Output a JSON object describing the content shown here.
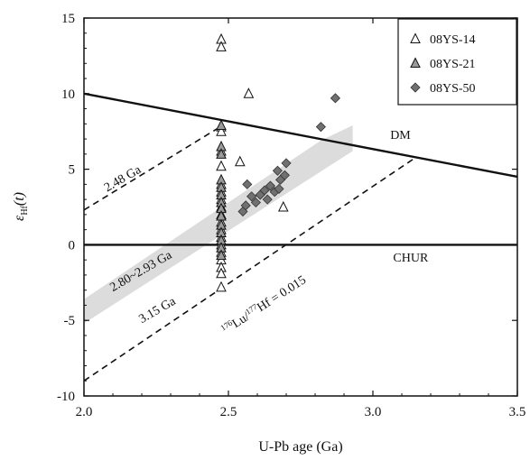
{
  "chart_data": {
    "type": "scatter",
    "xlabel": "U-Pb age (Ga)",
    "ylabel_main": "ε",
    "ylabel_sub": "Hf",
    "ylabel_tail": "(t)",
    "xlim": [
      2.0,
      3.5
    ],
    "ylim": [
      -10,
      15
    ],
    "xticks": [
      2.0,
      2.5,
      3.0,
      3.5
    ],
    "xtick_labels": [
      "2.0",
      "2.5",
      "3.0",
      "3.5"
    ],
    "yticks": [
      -10,
      -5,
      0,
      5,
      10,
      15
    ],
    "ytick_labels": [
      "-10",
      "-5",
      "0",
      "5",
      "10",
      "15"
    ],
    "legend_position": "top-right",
    "series": [
      {
        "name": "08YS-14",
        "marker": "triangle-open",
        "color": "#ffffff",
        "points": [
          [
            2.475,
            13.6
          ],
          [
            2.475,
            13.1
          ],
          [
            2.475,
            7.8
          ],
          [
            2.475,
            7.5
          ],
          [
            2.475,
            6.2
          ],
          [
            2.475,
            5.2
          ],
          [
            2.475,
            4.0
          ],
          [
            2.475,
            3.5
          ],
          [
            2.475,
            3.0
          ],
          [
            2.475,
            2.5
          ],
          [
            2.475,
            2.0
          ],
          [
            2.475,
            1.5
          ],
          [
            2.475,
            1.0
          ],
          [
            2.475,
            0.5
          ],
          [
            2.475,
            0.0
          ],
          [
            2.475,
            -0.5
          ],
          [
            2.475,
            -1.0
          ],
          [
            2.475,
            -1.5
          ],
          [
            2.475,
            -1.9
          ],
          [
            2.475,
            -2.8
          ],
          [
            2.54,
            5.5
          ],
          [
            2.57,
            10.0
          ],
          [
            2.69,
            2.5
          ]
        ]
      },
      {
        "name": "08YS-21",
        "marker": "triangle-filled",
        "color": "#9a9a9a",
        "points": [
          [
            2.475,
            7.9
          ],
          [
            2.475,
            6.5
          ],
          [
            2.475,
            6.0
          ],
          [
            2.475,
            4.3
          ],
          [
            2.475,
            3.8
          ],
          [
            2.475,
            3.3
          ],
          [
            2.475,
            2.8
          ],
          [
            2.475,
            2.4
          ],
          [
            2.475,
            1.9
          ],
          [
            2.475,
            1.3
          ],
          [
            2.475,
            0.8
          ],
          [
            2.475,
            0.3
          ],
          [
            2.475,
            -0.2
          ],
          [
            2.475,
            -0.7
          ]
        ]
      },
      {
        "name": "08YS-50",
        "marker": "diamond",
        "color": "#707070",
        "points": [
          [
            2.55,
            2.2
          ],
          [
            2.56,
            2.6
          ],
          [
            2.565,
            4.0
          ],
          [
            2.58,
            3.2
          ],
          [
            2.595,
            2.8
          ],
          [
            2.61,
            3.3
          ],
          [
            2.625,
            3.6
          ],
          [
            2.635,
            3.0
          ],
          [
            2.645,
            3.9
          ],
          [
            2.66,
            3.5
          ],
          [
            2.67,
            4.9
          ],
          [
            2.675,
            3.7
          ],
          [
            2.68,
            4.3
          ],
          [
            2.695,
            4.6
          ],
          [
            2.7,
            5.4
          ],
          [
            2.82,
            7.8
          ],
          [
            2.87,
            9.7
          ]
        ]
      }
    ],
    "reference_lines": [
      {
        "name": "DM",
        "style": "solid",
        "points": [
          [
            2.0,
            10.0
          ],
          [
            3.5,
            4.5
          ]
        ]
      },
      {
        "name": "CHUR",
        "style": "solid",
        "points": [
          [
            2.0,
            0.0
          ],
          [
            3.5,
            0.0
          ]
        ]
      },
      {
        "name": "2.48 Ga",
        "style": "dashed",
        "points": [
          [
            2.0,
            2.3
          ],
          [
            2.48,
            7.9
          ]
        ]
      },
      {
        "name": "3.15 Ga",
        "style": "dashed",
        "points": [
          [
            2.0,
            -9.0
          ],
          [
            3.15,
            5.8
          ]
        ]
      }
    ],
    "shaded_band": {
      "name": "2.80~2.93 Ga",
      "color": "#dcdcdc",
      "polygon": [
        [
          2.0,
          -3.6
        ],
        [
          2.82,
          6.9
        ],
        [
          2.93,
          7.9
        ],
        [
          2.93,
          6.2
        ],
        [
          2.0,
          -5.2
        ]
      ]
    },
    "annotations": [
      {
        "text": "DM",
        "x": 3.06,
        "y": 7.0,
        "rotate": 0
      },
      {
        "text": "CHUR",
        "x": 3.07,
        "y": -1.1,
        "rotate": 0
      },
      {
        "text": "2.48 Ga",
        "x": 2.08,
        "y": 3.5,
        "rotate": -30
      },
      {
        "text": "3.15 Ga",
        "x": 2.2,
        "y": -5.2,
        "rotate": -30
      },
      {
        "text": "2.80~2.93 Ga",
        "x": 2.1,
        "y": -3.1,
        "rotate": -30
      }
    ],
    "lu_hf_label": {
      "sup1": "176",
      "t1": "Lu/",
      "sup2": "177",
      "t2": "Hf = 0.015",
      "x": 2.63,
      "y": -4.2,
      "rotate": -33
    }
  }
}
